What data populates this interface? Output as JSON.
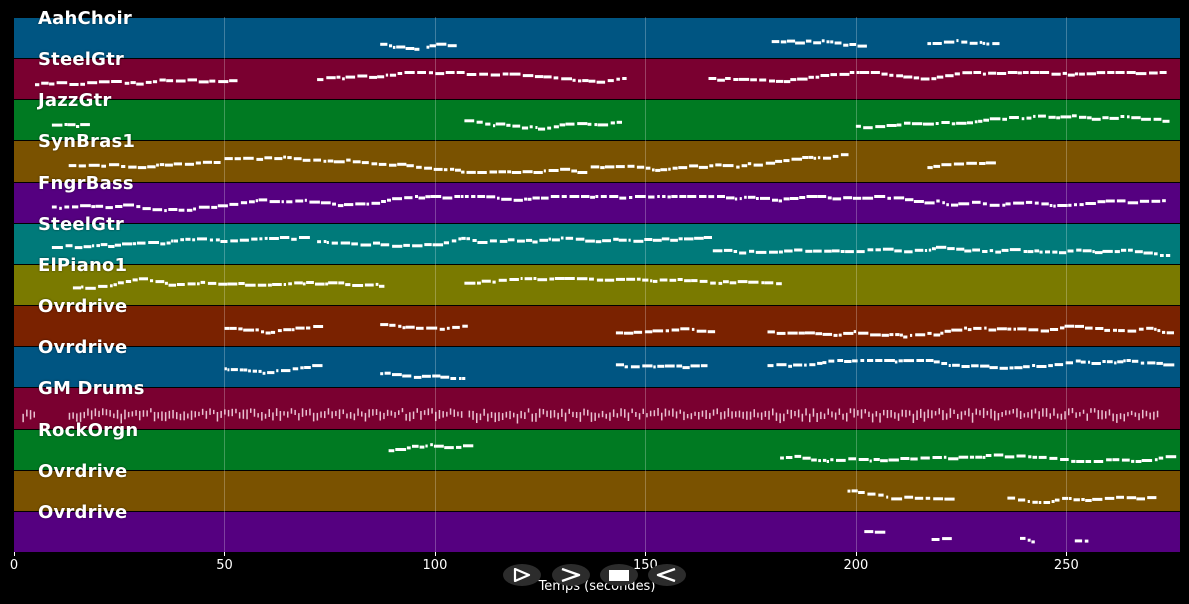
{
  "tracks": [
    {
      "name": "AahChoir",
      "color": "#005582"
    },
    {
      "name": "SteelGtr",
      "color": "#7a0030"
    },
    {
      "name": "JazzGtr",
      "color": "#007a22"
    },
    {
      "name": "SynBras1",
      "color": "#7a5200"
    },
    {
      "name": "FngrBass",
      "color": "#550080"
    },
    {
      "name": "SteelGtr",
      "color": "#007a7a"
    },
    {
      "name": "ElPiano1",
      "color": "#7a7a00"
    },
    {
      "name": "Ovrdrive",
      "color": "#7a2200"
    },
    {
      "name": "Ovrdrive",
      "color": "#005582"
    },
    {
      "name": "GM Drums",
      "color": "#7a0030"
    },
    {
      "name": "RockOrgn",
      "color": "#007a22"
    },
    {
      "name": "Ovrdrive",
      "color": "#7a5200"
    },
    {
      "name": "Ovrdrive",
      "color": "#550080"
    }
  ],
  "axis": {
    "label": "Temps (secondes)",
    "ticks": [
      "0",
      "50",
      "100",
      "150",
      "200",
      "250"
    ]
  },
  "controls": [
    {
      "name": "play-outline-button",
      "icon": "play-outline-icon"
    },
    {
      "name": "next-button",
      "icon": "chevron-right-icon"
    },
    {
      "name": "stop-button",
      "icon": "stop-icon"
    },
    {
      "name": "back-button",
      "icon": "chevron-left-icon"
    }
  ],
  "note_color": "#ffffff"
}
